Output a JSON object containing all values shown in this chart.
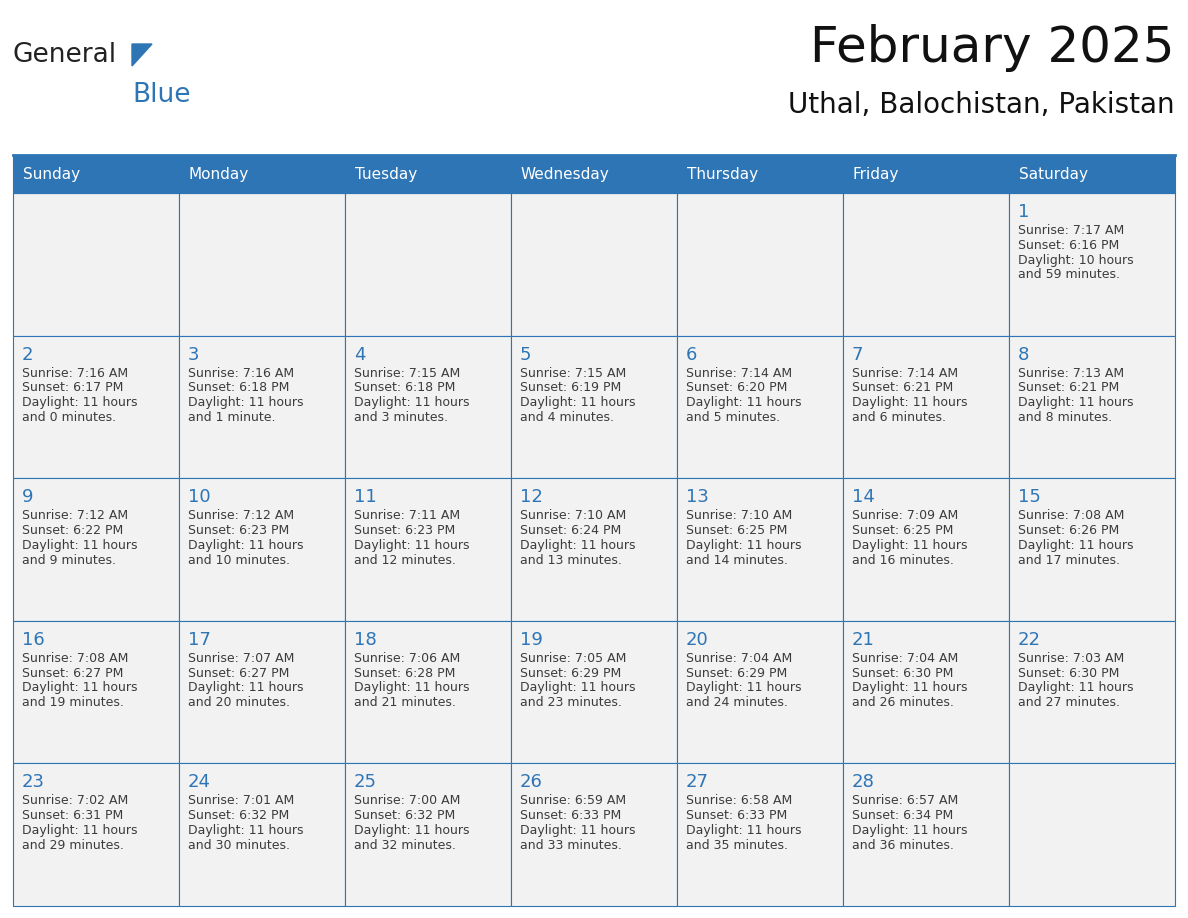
{
  "title": "February 2025",
  "subtitle": "Uthal, Balochistan, Pakistan",
  "header_color": "#2E75B6",
  "header_text_color": "#FFFFFF",
  "cell_bg_color": "#F2F2F2",
  "cell_bg_color_white": "#FFFFFF",
  "border_color": "#2E75B6",
  "day_number_color": "#2E75B6",
  "cell_text_color": "#3C3C3C",
  "days_of_week": [
    "Sunday",
    "Monday",
    "Tuesday",
    "Wednesday",
    "Thursday",
    "Friday",
    "Saturday"
  ],
  "weeks": [
    [
      {
        "day": null,
        "sunrise": null,
        "sunset": null,
        "daylight1": null,
        "daylight2": null
      },
      {
        "day": null,
        "sunrise": null,
        "sunset": null,
        "daylight1": null,
        "daylight2": null
      },
      {
        "day": null,
        "sunrise": null,
        "sunset": null,
        "daylight1": null,
        "daylight2": null
      },
      {
        "day": null,
        "sunrise": null,
        "sunset": null,
        "daylight1": null,
        "daylight2": null
      },
      {
        "day": null,
        "sunrise": null,
        "sunset": null,
        "daylight1": null,
        "daylight2": null
      },
      {
        "day": null,
        "sunrise": null,
        "sunset": null,
        "daylight1": null,
        "daylight2": null
      },
      {
        "day": 1,
        "sunrise": "Sunrise: 7:17 AM",
        "sunset": "Sunset: 6:16 PM",
        "daylight1": "Daylight: 10 hours",
        "daylight2": "and 59 minutes."
      }
    ],
    [
      {
        "day": 2,
        "sunrise": "Sunrise: 7:16 AM",
        "sunset": "Sunset: 6:17 PM",
        "daylight1": "Daylight: 11 hours",
        "daylight2": "and 0 minutes."
      },
      {
        "day": 3,
        "sunrise": "Sunrise: 7:16 AM",
        "sunset": "Sunset: 6:18 PM",
        "daylight1": "Daylight: 11 hours",
        "daylight2": "and 1 minute."
      },
      {
        "day": 4,
        "sunrise": "Sunrise: 7:15 AM",
        "sunset": "Sunset: 6:18 PM",
        "daylight1": "Daylight: 11 hours",
        "daylight2": "and 3 minutes."
      },
      {
        "day": 5,
        "sunrise": "Sunrise: 7:15 AM",
        "sunset": "Sunset: 6:19 PM",
        "daylight1": "Daylight: 11 hours",
        "daylight2": "and 4 minutes."
      },
      {
        "day": 6,
        "sunrise": "Sunrise: 7:14 AM",
        "sunset": "Sunset: 6:20 PM",
        "daylight1": "Daylight: 11 hours",
        "daylight2": "and 5 minutes."
      },
      {
        "day": 7,
        "sunrise": "Sunrise: 7:14 AM",
        "sunset": "Sunset: 6:21 PM",
        "daylight1": "Daylight: 11 hours",
        "daylight2": "and 6 minutes."
      },
      {
        "day": 8,
        "sunrise": "Sunrise: 7:13 AM",
        "sunset": "Sunset: 6:21 PM",
        "daylight1": "Daylight: 11 hours",
        "daylight2": "and 8 minutes."
      }
    ],
    [
      {
        "day": 9,
        "sunrise": "Sunrise: 7:12 AM",
        "sunset": "Sunset: 6:22 PM",
        "daylight1": "Daylight: 11 hours",
        "daylight2": "and 9 minutes."
      },
      {
        "day": 10,
        "sunrise": "Sunrise: 7:12 AM",
        "sunset": "Sunset: 6:23 PM",
        "daylight1": "Daylight: 11 hours",
        "daylight2": "and 10 minutes."
      },
      {
        "day": 11,
        "sunrise": "Sunrise: 7:11 AM",
        "sunset": "Sunset: 6:23 PM",
        "daylight1": "Daylight: 11 hours",
        "daylight2": "and 12 minutes."
      },
      {
        "day": 12,
        "sunrise": "Sunrise: 7:10 AM",
        "sunset": "Sunset: 6:24 PM",
        "daylight1": "Daylight: 11 hours",
        "daylight2": "and 13 minutes."
      },
      {
        "day": 13,
        "sunrise": "Sunrise: 7:10 AM",
        "sunset": "Sunset: 6:25 PM",
        "daylight1": "Daylight: 11 hours",
        "daylight2": "and 14 minutes."
      },
      {
        "day": 14,
        "sunrise": "Sunrise: 7:09 AM",
        "sunset": "Sunset: 6:25 PM",
        "daylight1": "Daylight: 11 hours",
        "daylight2": "and 16 minutes."
      },
      {
        "day": 15,
        "sunrise": "Sunrise: 7:08 AM",
        "sunset": "Sunset: 6:26 PM",
        "daylight1": "Daylight: 11 hours",
        "daylight2": "and 17 minutes."
      }
    ],
    [
      {
        "day": 16,
        "sunrise": "Sunrise: 7:08 AM",
        "sunset": "Sunset: 6:27 PM",
        "daylight1": "Daylight: 11 hours",
        "daylight2": "and 19 minutes."
      },
      {
        "day": 17,
        "sunrise": "Sunrise: 7:07 AM",
        "sunset": "Sunset: 6:27 PM",
        "daylight1": "Daylight: 11 hours",
        "daylight2": "and 20 minutes."
      },
      {
        "day": 18,
        "sunrise": "Sunrise: 7:06 AM",
        "sunset": "Sunset: 6:28 PM",
        "daylight1": "Daylight: 11 hours",
        "daylight2": "and 21 minutes."
      },
      {
        "day": 19,
        "sunrise": "Sunrise: 7:05 AM",
        "sunset": "Sunset: 6:29 PM",
        "daylight1": "Daylight: 11 hours",
        "daylight2": "and 23 minutes."
      },
      {
        "day": 20,
        "sunrise": "Sunrise: 7:04 AM",
        "sunset": "Sunset: 6:29 PM",
        "daylight1": "Daylight: 11 hours",
        "daylight2": "and 24 minutes."
      },
      {
        "day": 21,
        "sunrise": "Sunrise: 7:04 AM",
        "sunset": "Sunset: 6:30 PM",
        "daylight1": "Daylight: 11 hours",
        "daylight2": "and 26 minutes."
      },
      {
        "day": 22,
        "sunrise": "Sunrise: 7:03 AM",
        "sunset": "Sunset: 6:30 PM",
        "daylight1": "Daylight: 11 hours",
        "daylight2": "and 27 minutes."
      }
    ],
    [
      {
        "day": 23,
        "sunrise": "Sunrise: 7:02 AM",
        "sunset": "Sunset: 6:31 PM",
        "daylight1": "Daylight: 11 hours",
        "daylight2": "and 29 minutes."
      },
      {
        "day": 24,
        "sunrise": "Sunrise: 7:01 AM",
        "sunset": "Sunset: 6:32 PM",
        "daylight1": "Daylight: 11 hours",
        "daylight2": "and 30 minutes."
      },
      {
        "day": 25,
        "sunrise": "Sunrise: 7:00 AM",
        "sunset": "Sunset: 6:32 PM",
        "daylight1": "Daylight: 11 hours",
        "daylight2": "and 32 minutes."
      },
      {
        "day": 26,
        "sunrise": "Sunrise: 6:59 AM",
        "sunset": "Sunset: 6:33 PM",
        "daylight1": "Daylight: 11 hours",
        "daylight2": "and 33 minutes."
      },
      {
        "day": 27,
        "sunrise": "Sunrise: 6:58 AM",
        "sunset": "Sunset: 6:33 PM",
        "daylight1": "Daylight: 11 hours",
        "daylight2": "and 35 minutes."
      },
      {
        "day": 28,
        "sunrise": "Sunrise: 6:57 AM",
        "sunset": "Sunset: 6:34 PM",
        "daylight1": "Daylight: 11 hours",
        "daylight2": "and 36 minutes."
      },
      {
        "day": null,
        "sunrise": null,
        "sunset": null,
        "daylight1": null,
        "daylight2": null
      }
    ]
  ],
  "logo_text1": "General",
  "logo_text2": "Blue",
  "logo_color1": "#222222",
  "logo_color2": "#2E75B6",
  "title_fontsize": 36,
  "subtitle_fontsize": 20,
  "header_fontsize": 11,
  "day_num_fontsize": 13,
  "cell_fontsize": 9
}
